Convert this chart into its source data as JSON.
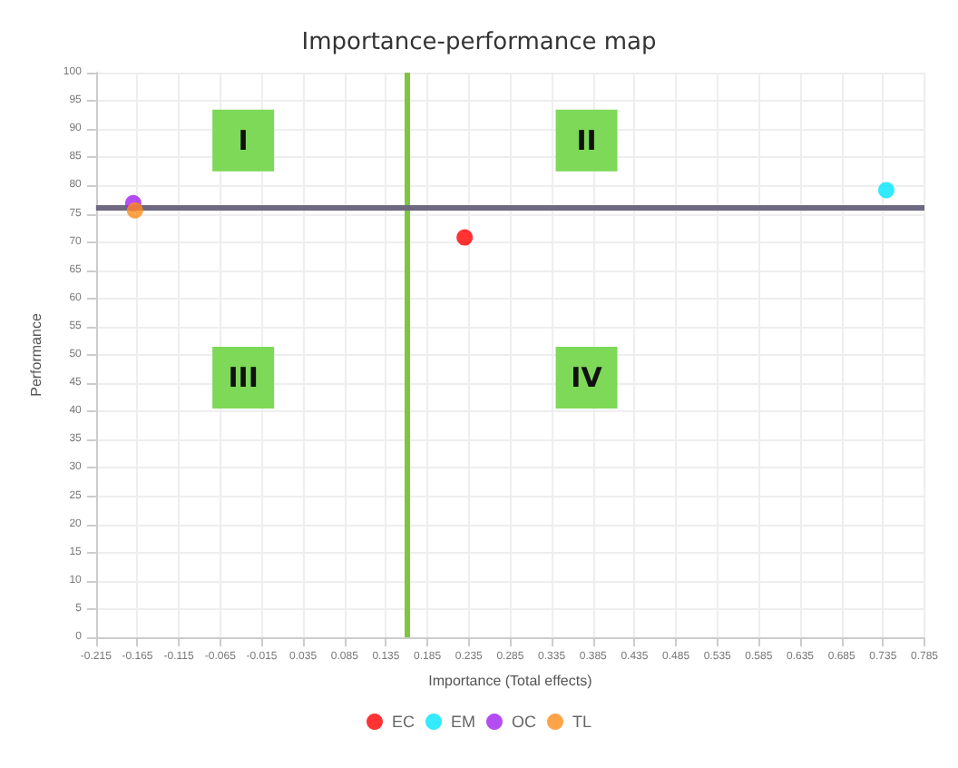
{
  "chart_data": {
    "type": "scatter",
    "title": "Importance-performance map",
    "xlabel": "Importance (Total effects)",
    "ylabel": "Performance",
    "series": [
      {
        "name": "EC",
        "color": "#ff0000",
        "x": [
          0.23
        ],
        "values": [
          70.8
        ]
      },
      {
        "name": "EM",
        "color": "#00e5ff",
        "x": [
          0.739
        ],
        "values": [
          79.2
        ]
      },
      {
        "name": "OC",
        "color": "#a020f0",
        "x": [
          -0.17
        ],
        "values": [
          76.9
        ]
      },
      {
        "name": "TL",
        "color": "#ff8c1a",
        "x": [
          -0.168
        ],
        "values": [
          75.6
        ]
      }
    ],
    "xlim": [
      -0.215,
      0.785
    ],
    "xticks": [
      -0.215,
      -0.165,
      -0.115,
      -0.065,
      -0.015,
      0.035,
      0.085,
      0.135,
      0.185,
      0.235,
      0.285,
      0.335,
      0.385,
      0.435,
      0.485,
      0.535,
      0.585,
      0.635,
      0.685,
      0.735,
      0.785
    ],
    "ylim": [
      0,
      100
    ],
    "yticks": [
      0,
      5,
      10,
      15,
      20,
      25,
      30,
      35,
      40,
      45,
      50,
      55,
      60,
      65,
      70,
      75,
      80,
      85,
      90,
      95,
      100
    ],
    "ref_lines": [
      {
        "axis": "x",
        "value": 0.16,
        "color": "#7dc63f"
      },
      {
        "axis": "y",
        "value": 76,
        "color": "#6e6880"
      }
    ],
    "annotations": [
      "I",
      "II",
      "III",
      "IV"
    ],
    "grid": true,
    "legend": "bottom",
    "marker": "circle"
  }
}
